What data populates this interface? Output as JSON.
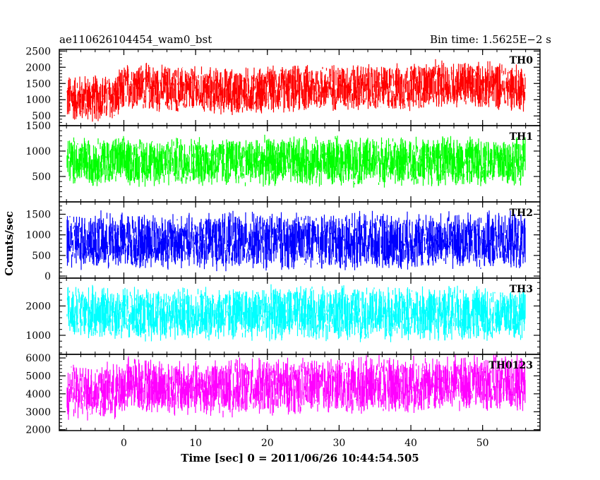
{
  "chart_data": {
    "type": "line",
    "title_left": "ae110626104454_wam0_bst",
    "title_right": "Bin time: 1.5625E−2 s",
    "xlabel": "Time [sec] 0 = 2011/06/26 10:44:54.505",
    "ylabel": "Counts/sec",
    "xlim": [
      -9,
      58
    ],
    "x_ticks": [
      0,
      10,
      20,
      30,
      40,
      50
    ],
    "x_range_data": [
      -8,
      56
    ],
    "series": [
      {
        "name": "TH0",
        "color": "#ff0000",
        "ylim": [
          200,
          2550
        ],
        "y_ticks": [
          500,
          1000,
          1500,
          2000,
          2500
        ],
        "trend_x": [
          -8,
          -1,
          0,
          1,
          5,
          10,
          15,
          20,
          25,
          30,
          35,
          40,
          45,
          50,
          56
        ],
        "trend_y": [
          1050,
          1050,
          1350,
          1450,
          1350,
          1300,
          1250,
          1300,
          1350,
          1400,
          1350,
          1400,
          1500,
          1450,
          1400
        ],
        "spread": 1600
      },
      {
        "name": "TH1",
        "color": "#00ff00",
        "ylim": [
          0,
          1500
        ],
        "y_ticks": [
          500,
          1000,
          1500
        ],
        "trend_x": [
          -8,
          0,
          56
        ],
        "trend_y": [
          800,
          800,
          800
        ],
        "spread": 1050
      },
      {
        "name": "TH2",
        "color": "#0000ff",
        "ylim": [
          -50,
          1800
        ],
        "y_ticks": [
          0,
          500,
          1000,
          1500
        ],
        "trend_x": [
          -8,
          0,
          56
        ],
        "trend_y": [
          850,
          850,
          850
        ],
        "spread": 1500
      },
      {
        "name": "TH3",
        "color": "#00ffff",
        "ylim": [
          350,
          2950
        ],
        "y_ticks": [
          1000,
          2000
        ],
        "trend_x": [
          -8,
          0,
          56
        ],
        "trend_y": [
          1750,
          1750,
          1750
        ],
        "spread": 2000
      },
      {
        "name": "TH0123",
        "color": "#ff00ff",
        "ylim": [
          1950,
          6200
        ],
        "y_ticks": [
          2000,
          3000,
          4000,
          5000,
          6000
        ],
        "trend_x": [
          -8,
          -1,
          0,
          1,
          5,
          10,
          20,
          30,
          40,
          50,
          56
        ],
        "trend_y": [
          4100,
          4100,
          4400,
          4600,
          4400,
          4300,
          4400,
          4500,
          4500,
          4600,
          4500
        ],
        "spread": 3400
      }
    ]
  }
}
